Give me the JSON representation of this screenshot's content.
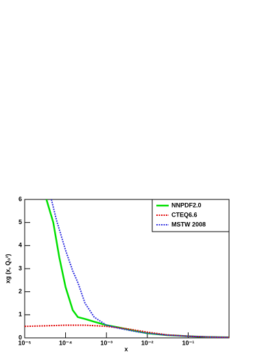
{
  "chart_data": {
    "type": "line",
    "x_label": "x",
    "y_label": "xg (x, Q₀²)",
    "log_x": true,
    "xlim": [
      1e-05,
      1
    ],
    "ylim": [
      0,
      6
    ],
    "xticks": [
      {
        "value": 1e-05,
        "label": "10⁻⁵"
      },
      {
        "value": 0.0001,
        "label": "10⁻⁴"
      },
      {
        "value": 0.001,
        "label": "10⁻³"
      },
      {
        "value": 0.01,
        "label": "10⁻²"
      },
      {
        "value": 0.1,
        "label": "10⁻¹"
      }
    ],
    "yticks": [
      0,
      1,
      2,
      3,
      4,
      5,
      6
    ],
    "legend": "top-right",
    "series": [
      {
        "name": "NNPDF2.0",
        "color": "#00e000",
        "style": "solid",
        "x": [
          3.4e-05,
          5e-05,
          7e-05,
          0.0001,
          0.00015,
          0.0002,
          0.0003,
          0.0005,
          0.001,
          0.002,
          0.005,
          0.01,
          0.03,
          0.1,
          0.3,
          1
        ],
        "values": [
          6,
          5,
          3.5,
          2.2,
          1.2,
          0.9,
          0.82,
          0.7,
          0.55,
          0.45,
          0.3,
          0.2,
          0.12,
          0.07,
          0.04,
          0.02
        ]
      },
      {
        "name": "CTEQ6.6",
        "color": "#e00000",
        "style": "dotted",
        "x": [
          1e-05,
          3e-05,
          0.0001,
          0.0003,
          0.001,
          0.003,
          0.01,
          0.03,
          0.1,
          0.3,
          1
        ],
        "values": [
          0.5,
          0.52,
          0.55,
          0.55,
          0.5,
          0.4,
          0.25,
          0.13,
          0.07,
          0.04,
          0.02
        ]
      },
      {
        "name": "MSTW 2008",
        "color": "#3030e0",
        "style": "dotted",
        "x": [
          4.5e-05,
          6e-05,
          0.0001,
          0.00015,
          0.0002,
          0.0003,
          0.0005,
          0.001,
          0.002,
          0.005,
          0.01,
          0.03,
          0.1,
          0.3,
          1
        ],
        "values": [
          6,
          5.1,
          3.8,
          2.9,
          2.4,
          1.5,
          0.9,
          0.55,
          0.42,
          0.28,
          0.2,
          0.12,
          0.07,
          0.04,
          0.02
        ]
      }
    ]
  }
}
